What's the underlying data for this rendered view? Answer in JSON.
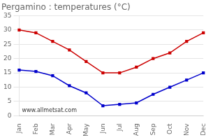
{
  "chart_data": {
    "type": "line",
    "title": "Pergamino : temperatures (°C)",
    "categories": [
      "Jan",
      "Feb",
      "Mar",
      "Apr",
      "May",
      "Jun",
      "Jul",
      "Aug",
      "Sep",
      "Oct",
      "Nov",
      "Dec"
    ],
    "series": [
      {
        "color": "#cc0000",
        "marker": "square",
        "values": [
          30,
          29,
          26,
          23,
          19,
          15,
          15,
          17,
          20,
          22,
          26,
          29
        ]
      },
      {
        "color": "#0000cc",
        "marker": "square",
        "values": [
          16,
          15.5,
          14,
          10.5,
          8,
          3.5,
          4,
          4.5,
          7.5,
          10,
          12.5,
          15
        ]
      }
    ],
    "ylim": [
      0,
      35
    ],
    "yticks": [
      0,
      5,
      10,
      15,
      20,
      25,
      30,
      35
    ],
    "grid": true,
    "annotations": [
      "www.allmetsat.com"
    ]
  }
}
